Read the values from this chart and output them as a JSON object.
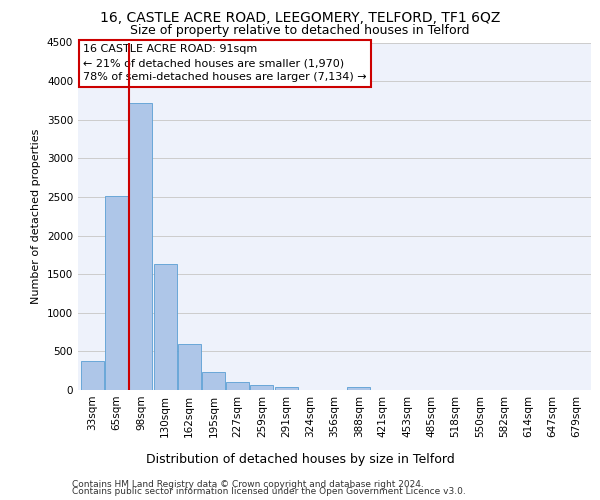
{
  "title1": "16, CASTLE ACRE ROAD, LEEGOMERY, TELFORD, TF1 6QZ",
  "title2": "Size of property relative to detached houses in Telford",
  "xlabel": "Distribution of detached houses by size in Telford",
  "ylabel": "Number of detached properties",
  "categories": [
    "33sqm",
    "65sqm",
    "98sqm",
    "130sqm",
    "162sqm",
    "195sqm",
    "227sqm",
    "259sqm",
    "291sqm",
    "324sqm",
    "356sqm",
    "388sqm",
    "421sqm",
    "453sqm",
    "485sqm",
    "518sqm",
    "550sqm",
    "582sqm",
    "614sqm",
    "647sqm",
    "679sqm"
  ],
  "values": [
    370,
    2510,
    3720,
    1630,
    590,
    230,
    110,
    70,
    40,
    0,
    0,
    40,
    0,
    0,
    0,
    0,
    0,
    0,
    0,
    0,
    0
  ],
  "bar_color": "#aec6e8",
  "bar_edge_color": "#5a9fd4",
  "vline_x_index": 2,
  "annotation_text": "16 CASTLE ACRE ROAD: 91sqm\n← 21% of detached houses are smaller (1,970)\n78% of semi-detached houses are larger (7,134) →",
  "annotation_box_color": "#ffffff",
  "annotation_box_edge_color": "#cc0000",
  "vline_color": "#cc0000",
  "ylim": [
    0,
    4500
  ],
  "yticks": [
    0,
    500,
    1000,
    1500,
    2000,
    2500,
    3000,
    3500,
    4000,
    4500
  ],
  "grid_color": "#cccccc",
  "background_color": "#eef2fb",
  "footer1": "Contains HM Land Registry data © Crown copyright and database right 2024.",
  "footer2": "Contains public sector information licensed under the Open Government Licence v3.0.",
  "title1_fontsize": 10,
  "title2_fontsize": 9,
  "ylabel_fontsize": 8,
  "xlabel_fontsize": 9,
  "tick_fontsize": 7.5,
  "annotation_fontsize": 8,
  "footer_fontsize": 6.5
}
